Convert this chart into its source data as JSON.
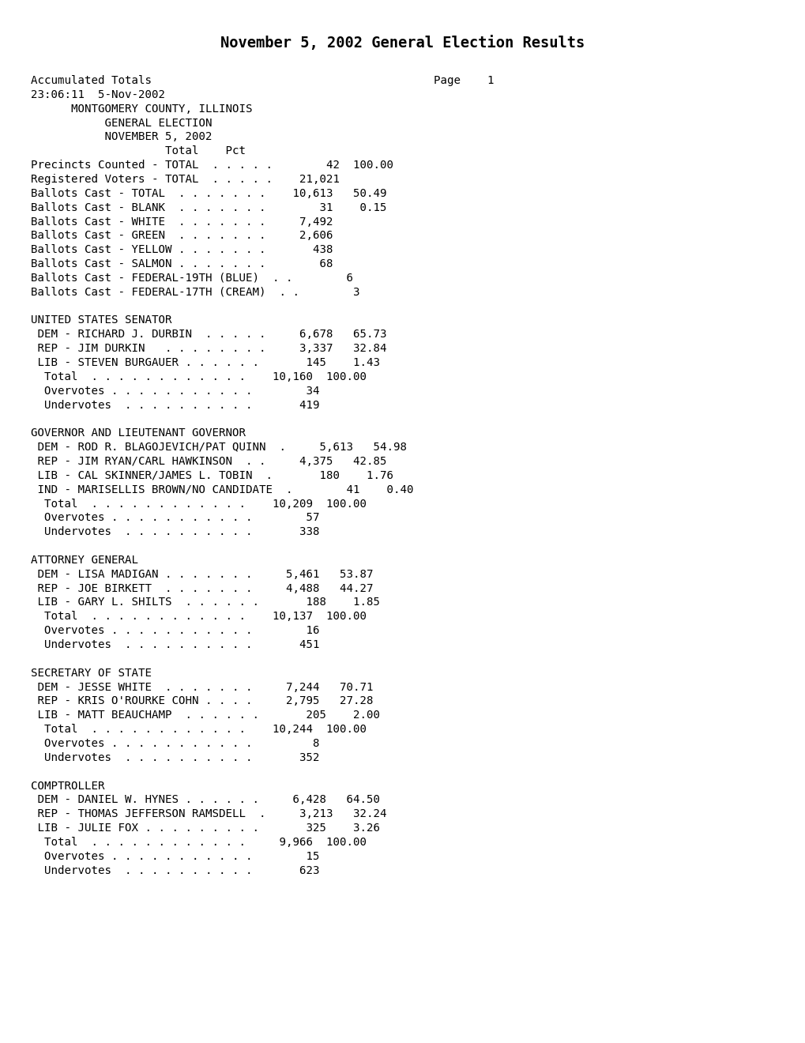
{
  "title": "November 5, 2002 General Election Results",
  "background_color": "#ffffff",
  "text_color": "#000000",
  "title_fontsize": 13.5,
  "body_fontsize": 10.2,
  "body_text": "Accumulated Totals                                          Page    1\n23:06:11  5-Nov-2002\n      MONTGOMERY COUNTY, ILLINOIS\n           GENERAL ELECTION\n           NOVEMBER 5, 2002\n                    Total    Pct\nPrecincts Counted - TOTAL  . . . . .        42  100.00\nRegistered Voters - TOTAL  . . . . .    21,021\nBallots Cast - TOTAL  . . . . . . .    10,613   50.49\nBallots Cast - BLANK  . . . . . . .        31    0.15\nBallots Cast - WHITE  . . . . . . .     7,492\nBallots Cast - GREEN  . . . . . . .     2,606\nBallots Cast - YELLOW . . . . . . .       438\nBallots Cast - SALMON . . . . . . .        68\nBallots Cast - FEDERAL-19TH (BLUE)  . .        6\nBallots Cast - FEDERAL-17TH (CREAM)  . .        3\n\nUNITED STATES SENATOR\n DEM - RICHARD J. DURBIN  . . . . .     6,678   65.73\n REP - JIM DURKIN   . . . . . . . .     3,337   32.84\n LIB - STEVEN BURGAUER . . . . . .       145    1.43\n  Total  . . . . . . . . . . . .    10,160  100.00\n  Overvotes . . . . . . . . . . .        34\n  Undervotes  . . . . . . . . . .       419\n\nGOVERNOR AND LIEUTENANT GOVERNOR\n DEM - ROD R. BLAGOJEVICH/PAT QUINN  .     5,613   54.98\n REP - JIM RYAN/CARL HAWKINSON  . .     4,375   42.85\n LIB - CAL SKINNER/JAMES L. TOBIN  .       180    1.76\n IND - MARISELLIS BROWN/NO CANDIDATE  .        41    0.40\n  Total  . . . . . . . . . . . .    10,209  100.00\n  Overvotes . . . . . . . . . . .        57\n  Undervotes  . . . . . . . . . .       338\n\nATTORNEY GENERAL\n DEM - LISA MADIGAN . . . . . . .     5,461   53.87\n REP - JOE BIRKETT  . . . . . . .     4,488   44.27\n LIB - GARY L. SHILTS  . . . . . .       188    1.85\n  Total  . . . . . . . . . . . .    10,137  100.00\n  Overvotes . . . . . . . . . . .        16\n  Undervotes  . . . . . . . . . .       451\n\nSECRETARY OF STATE\n DEM - JESSE WHITE  . . . . . . .     7,244   70.71\n REP - KRIS O'ROURKE COHN . . . .     2,795   27.28\n LIB - MATT BEAUCHAMP  . . . . . .       205    2.00\n  Total  . . . . . . . . . . . .    10,244  100.00\n  Overvotes . . . . . . . . . . .         8\n  Undervotes  . . . . . . . . . .       352\n\nCOMPTROLLER\n DEM - DANIEL W. HYNES . . . . . .     6,428   64.50\n REP - THOMAS JEFFERSON RAMSDELL  .     3,213   32.24\n LIB - JULIE FOX . . . . . . . . .       325    3.26\n  Total  . . . . . . . . . . . .     9,966  100.00\n  Overvotes . . . . . . . . . . .        15\n  Undervotes  . . . . . . . . . .       623"
}
